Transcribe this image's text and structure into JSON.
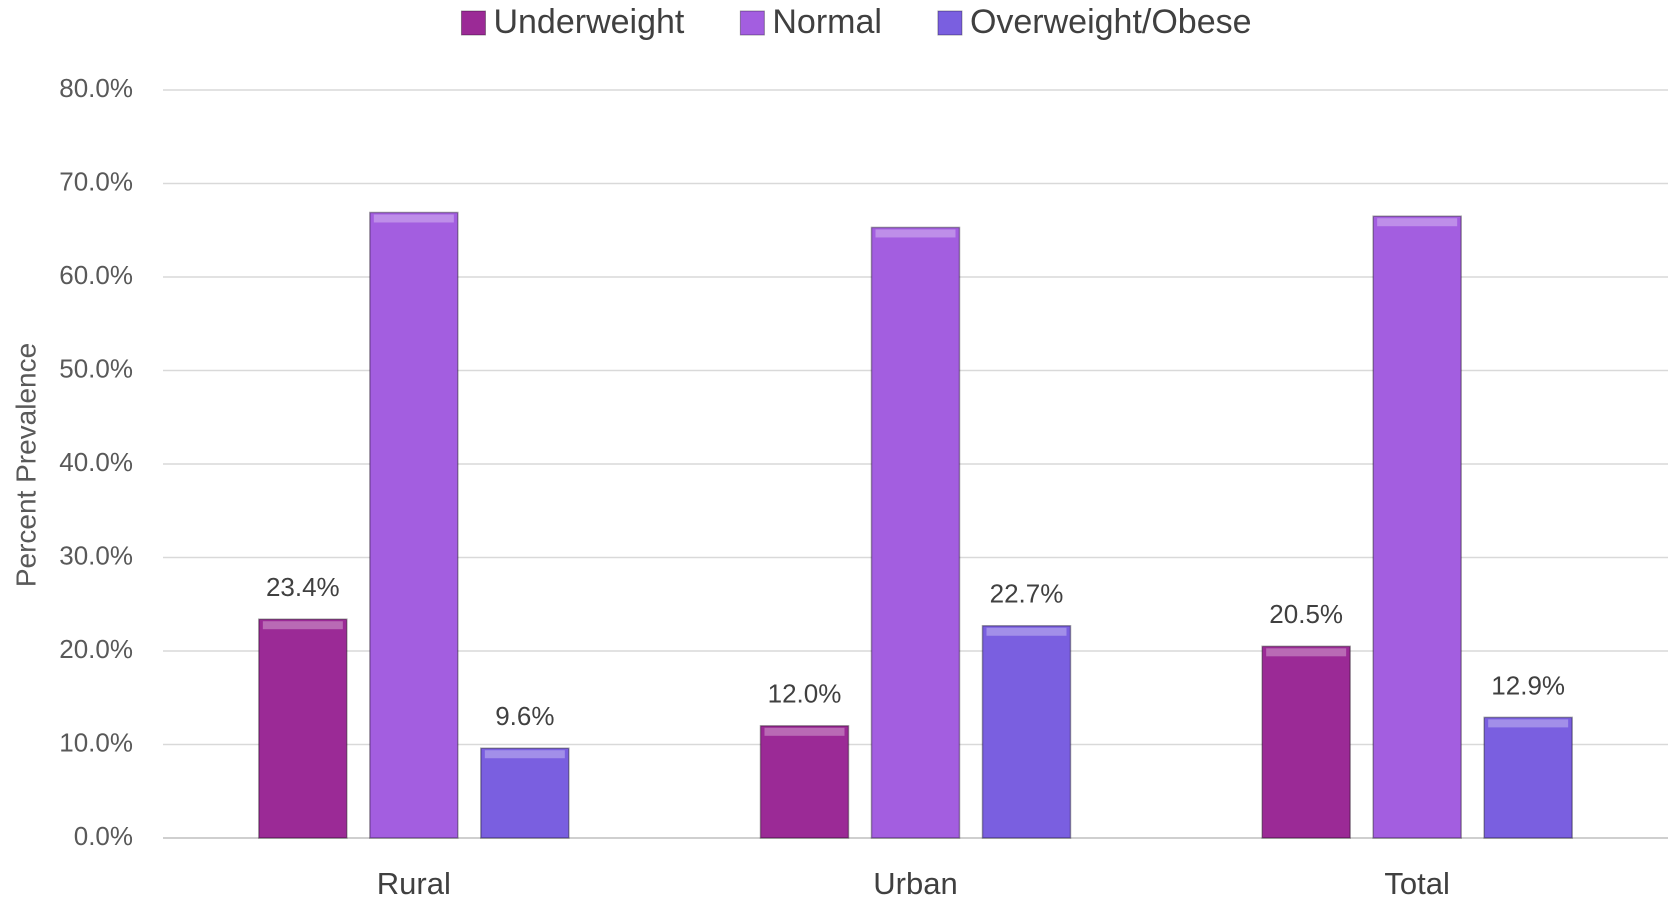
{
  "chart_data": {
    "type": "bar",
    "y_label": "Percent Prevalence",
    "categories": [
      "Rural",
      "Urban",
      "Total"
    ],
    "series": [
      {
        "name": "Underweight",
        "color": "#9b2a96",
        "values": [
          23.4,
          12.0,
          20.5
        ],
        "value_labels": [
          "23.4%",
          "12.0%",
          "20.5%"
        ]
      },
      {
        "name": "Normal",
        "color": "#a35ee0",
        "values": [
          66.9,
          65.3,
          66.5
        ]
      },
      {
        "name": "Overweight/Obese",
        "color": "#7a5fe0",
        "values": [
          9.6,
          22.7,
          12.9
        ],
        "value_labels": [
          "9.6%",
          "22.7%",
          "12.9%"
        ]
      }
    ],
    "ylim": [
      0,
      80
    ],
    "yticks": [
      {
        "value": 0,
        "label": "0.0%"
      },
      {
        "value": 10,
        "label": "10.0%"
      },
      {
        "value": 20,
        "label": "20.0%"
      },
      {
        "value": 30,
        "label": "30.0%"
      },
      {
        "value": 40,
        "label": "40.0%"
      },
      {
        "value": 50,
        "label": "50.0%"
      },
      {
        "value": 60,
        "label": "60.0%"
      },
      {
        "value": 70,
        "label": "70.0%"
      },
      {
        "value": 80,
        "label": "80.0%"
      }
    ],
    "grid": true,
    "legend": "top"
  }
}
